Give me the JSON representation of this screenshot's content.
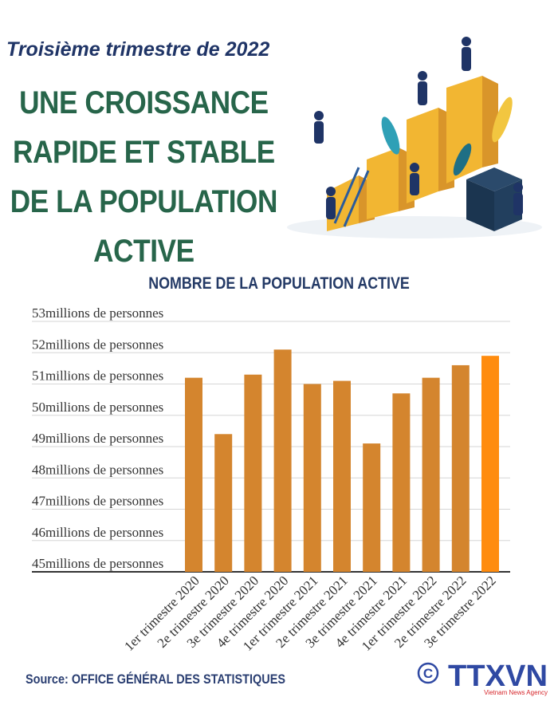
{
  "header": {
    "subtitle": "Troisième trimestre de  2022",
    "headline_lines": [
      "UNE CROISSANCE",
      "RAPIDE ET STABLE",
      "DE LA POPULATION",
      "ACTIVE"
    ]
  },
  "chart_data": {
    "type": "bar",
    "title": "NOMBRE DE LA POPULATION ACTIVE",
    "categories": [
      "1er trimestre 2020",
      "2e trimestre 2020",
      "3e trimestre 2020",
      "4e trimestre 2020",
      "1er trimestre 2021",
      "2e trimestre 2021",
      "3e trimestre 2021",
      "4e trimestre 2021",
      "1er trimestre 2022",
      "2e trimestre 2022",
      "3e trimestre 2022"
    ],
    "values": [
      51.2,
      49.4,
      51.3,
      52.1,
      51.0,
      51.1,
      49.1,
      50.7,
      51.2,
      51.6,
      51.9
    ],
    "ylim": [
      45,
      53
    ],
    "yticks": [
      53,
      52,
      51,
      50,
      49,
      48,
      47,
      46,
      45
    ],
    "ytick_suffix": "millions de personnes",
    "grid": true,
    "colors": {
      "bar": "#d4852e",
      "highlight": "#ff8c0f"
    },
    "highlight_index": 10
  },
  "footer": {
    "source": "Source: OFFICE GÉNÉRAL DES STATISTIQUES",
    "logo_text": "TTXVN",
    "logo_sub": "Vietnam News Agency",
    "copyright": "©"
  }
}
